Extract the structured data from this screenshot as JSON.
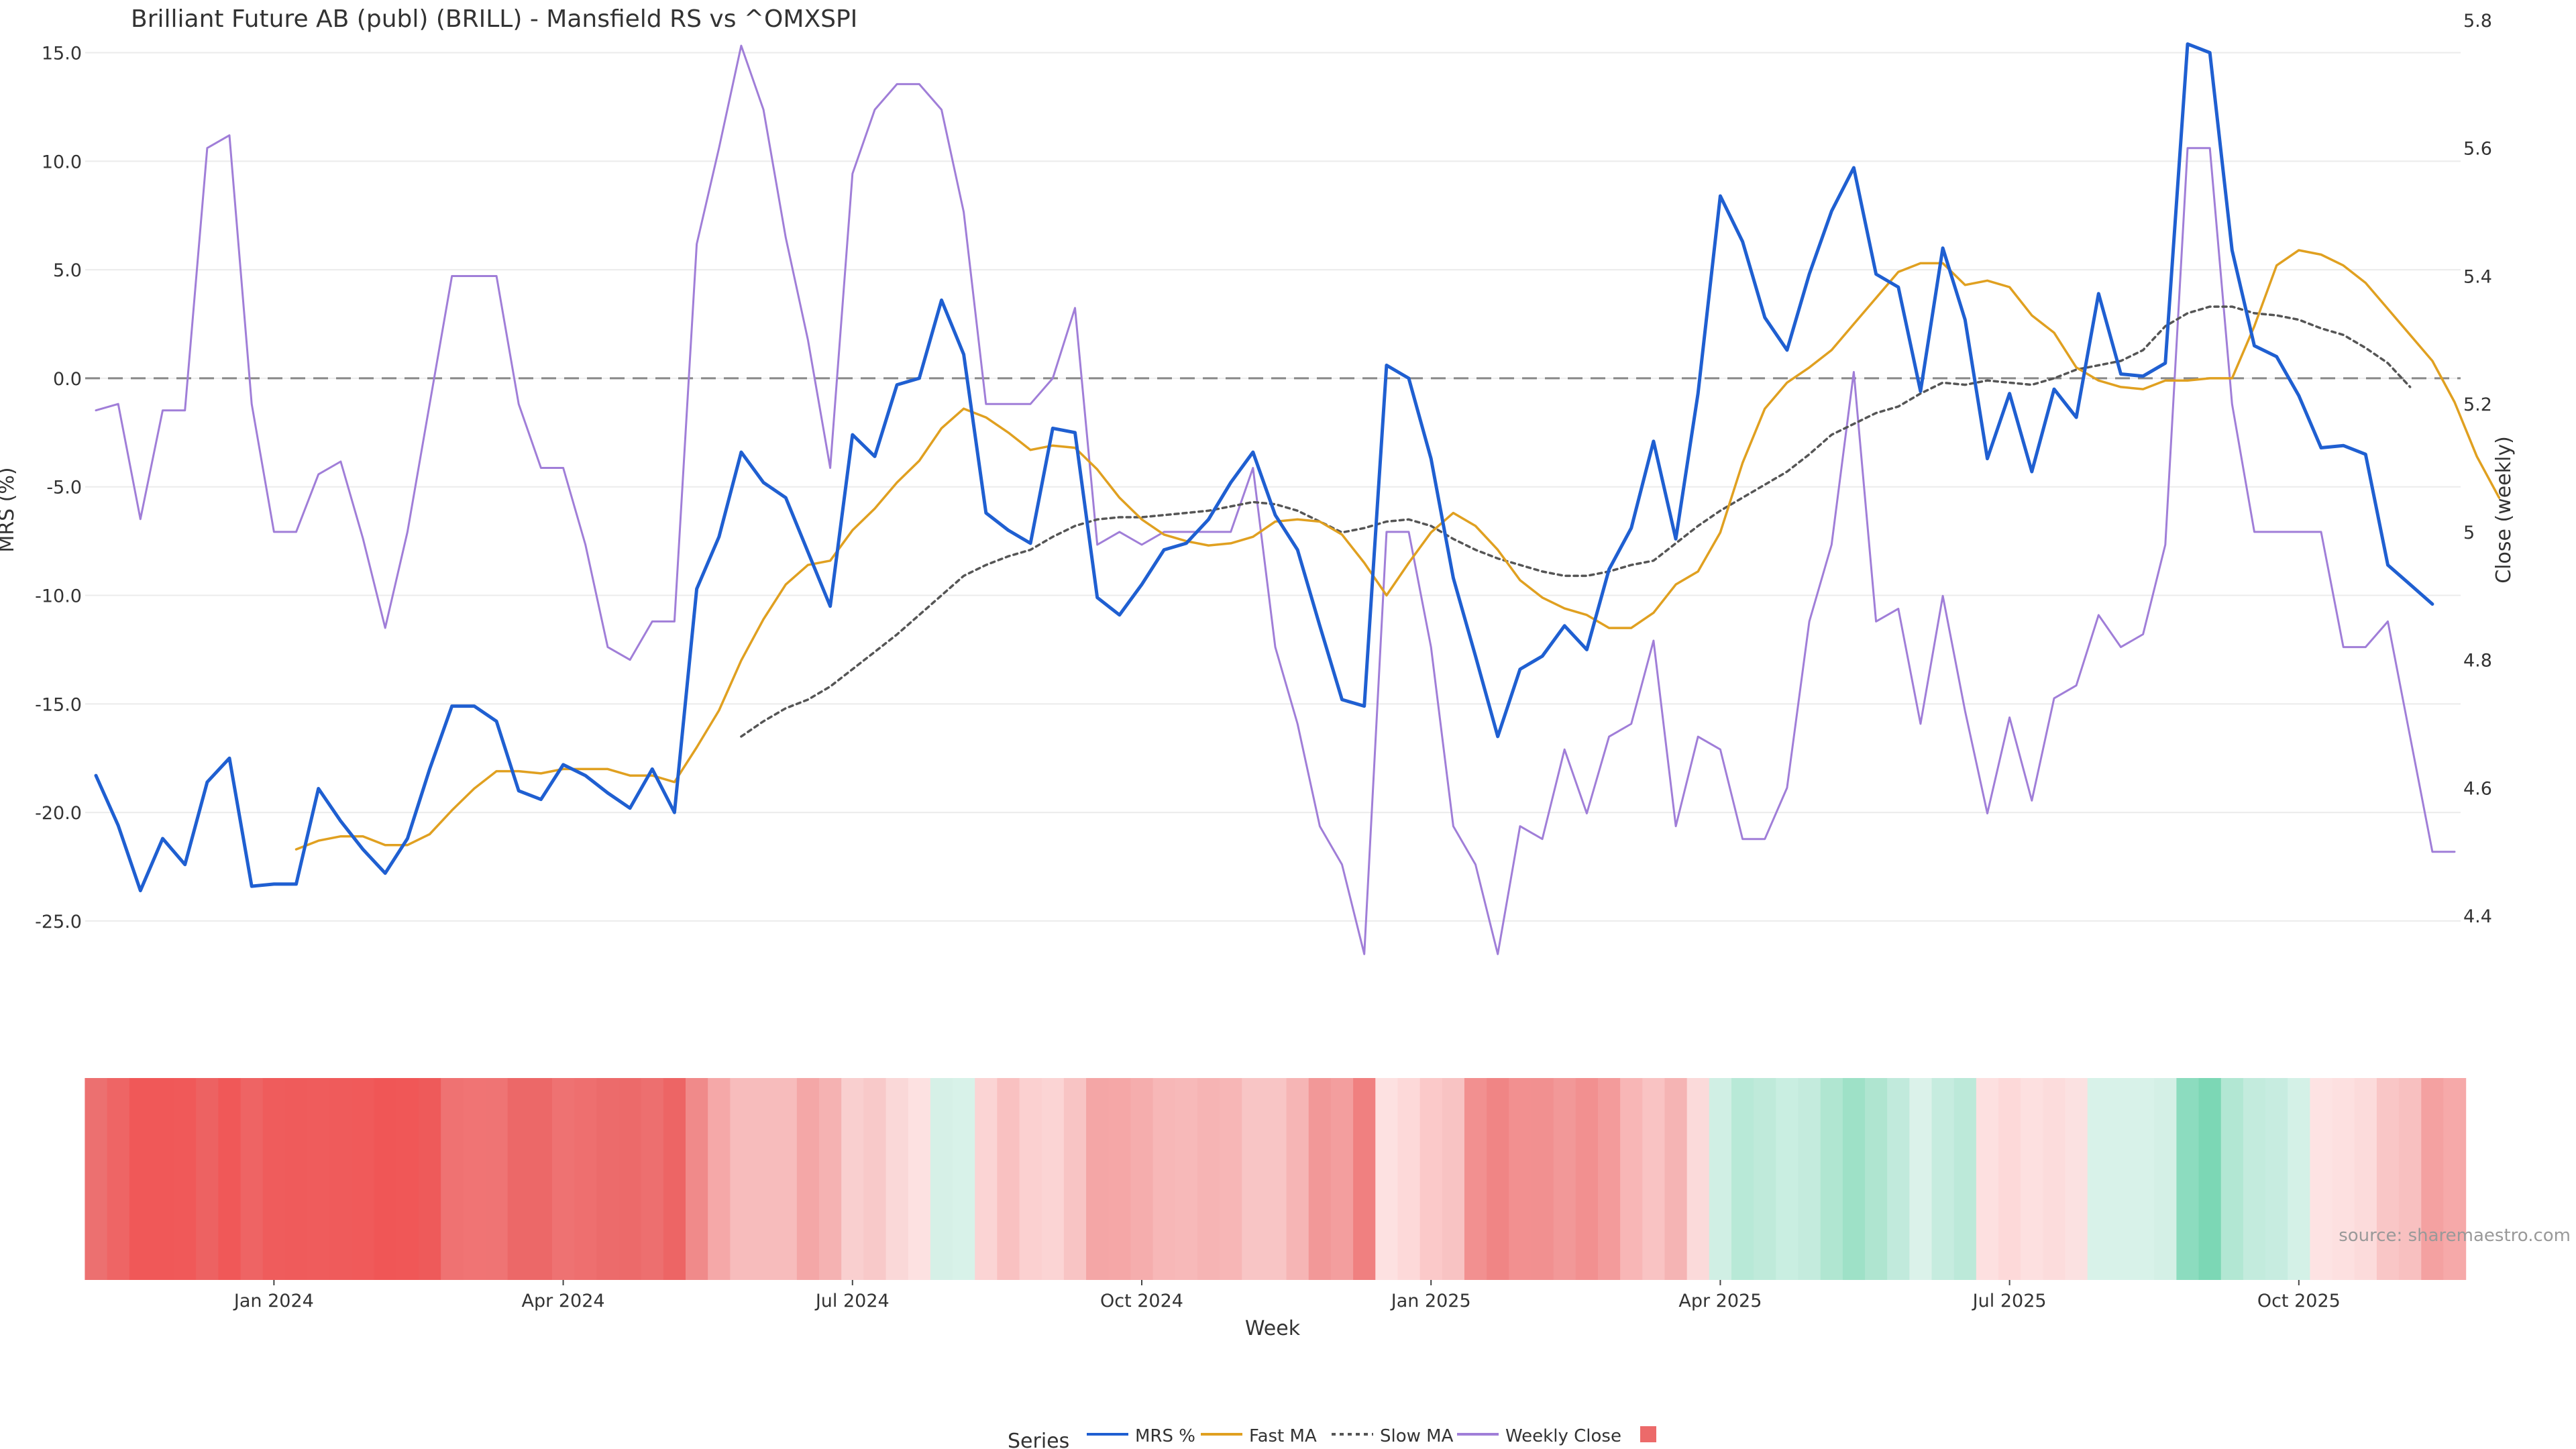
{
  "chart_data": {
    "type": "line",
    "title": "Brilliant Future AB (publ) (BRILL) - Mansfield RS vs ^OMXSPI",
    "xlabel": "Week",
    "ylabel_left": "MRS (%)",
    "ylabel_right": "Close (weekly)",
    "source": "source: sharemaestro.com",
    "left_axis": {
      "min": -28.0,
      "max": 16.5,
      "ticks": [
        15.0,
        10.0,
        5.0,
        0.0,
        -5.0,
        -10.0,
        -15.0,
        -20.0,
        -25.0
      ]
    },
    "right_axis": {
      "min": 4.29,
      "max": 5.8,
      "ticks": [
        "5.8",
        "5.6",
        "5.4",
        "5.2",
        "5",
        "4.8",
        "4.6",
        "4.4"
      ]
    },
    "x_ticks": [
      {
        "label": "Jan 2024",
        "week": 8
      },
      {
        "label": "Apr 2024",
        "week": 21
      },
      {
        "label": "Jul 2024",
        "week": 34
      },
      {
        "label": "Oct 2024",
        "week": 47
      },
      {
        "label": "Jan 2025",
        "week": 60
      },
      {
        "label": "Apr 2025",
        "week": 73
      },
      {
        "label": "Jul 2025",
        "week": 86
      },
      {
        "label": "Oct 2025",
        "week": 99
      }
    ],
    "week_count": 106,
    "series": [
      {
        "name": "MRS %",
        "color": "#1f5fd1",
        "axis": "left",
        "style": "solid",
        "start": 0,
        "values": [
          -18.3,
          -20.6,
          -23.6,
          -21.2,
          -22.4,
          -18.6,
          -17.5,
          -23.4,
          -23.3,
          -23.3,
          -18.9,
          -20.4,
          -21.7,
          -22.8,
          -21.2,
          -18.0,
          -15.1,
          -15.1,
          -15.8,
          -19.0,
          -19.4,
          -17.8,
          -18.3,
          -19.1,
          -19.8,
          -18.0,
          -20.0,
          -9.7,
          -7.3,
          -3.4,
          -4.8,
          -5.5,
          -8.0,
          -10.5,
          -2.6,
          -3.6,
          -0.3,
          0.0,
          3.6,
          1.1,
          -6.2,
          -7.0,
          -7.6,
          -2.3,
          -2.5,
          -10.1,
          -10.9,
          -9.5,
          -7.9,
          -7.6,
          -6.5,
          -4.8,
          -3.4,
          -6.3,
          -7.9,
          -11.4,
          -14.8,
          -15.1,
          0.6,
          0.0,
          -3.7,
          -9.2,
          -12.8,
          -16.5,
          -13.4,
          -12.8,
          -11.4,
          -12.5,
          -8.8,
          -6.9,
          -2.9,
          -7.4,
          -0.7,
          8.4,
          6.3,
          2.8,
          1.3,
          4.8,
          7.7,
          9.7,
          4.8,
          4.2,
          -0.6,
          6.0,
          2.7,
          -3.7,
          -0.7,
          -4.3,
          -0.5,
          -1.8,
          3.9,
          0.2,
          0.1,
          0.7,
          15.4,
          15.0,
          5.9,
          1.5,
          1.0,
          -0.8,
          -3.2,
          -3.1,
          -3.5,
          -8.6,
          -9.5,
          -10.4
        ]
      },
      {
        "name": "Fast MA",
        "color": "#e0a020",
        "axis": "left",
        "style": "solid",
        "start": 9,
        "values": [
          -21.7,
          -21.3,
          -21.1,
          -21.1,
          -21.5,
          -21.5,
          -21.0,
          -19.9,
          -18.9,
          -18.1,
          -18.1,
          -18.2,
          -18.0,
          -18.0,
          -18.0,
          -18.3,
          -18.3,
          -18.6,
          -17.0,
          -15.3,
          -13.0,
          -11.1,
          -9.5,
          -8.6,
          -8.4,
          -7.0,
          -6.0,
          -4.8,
          -3.8,
          -2.3,
          -1.4,
          -1.8,
          -2.5,
          -3.3,
          -3.1,
          -3.2,
          -4.2,
          -5.5,
          -6.5,
          -7.2,
          -7.5,
          -7.7,
          -7.6,
          -7.3,
          -6.6,
          -6.5,
          -6.6,
          -7.2,
          -8.5,
          -10.0,
          -8.5,
          -7.1,
          -6.2,
          -6.8,
          -7.9,
          -9.3,
          -10.1,
          -10.6,
          -10.9,
          -11.5,
          -11.5,
          -10.8,
          -9.5,
          -8.9,
          -7.1,
          -3.9,
          -1.4,
          -0.2,
          0.5,
          1.3,
          2.5,
          3.7,
          4.9,
          5.3,
          5.3,
          4.3,
          4.5,
          4.2,
          2.9,
          2.1,
          0.5,
          -0.1,
          -0.4,
          -0.5,
          -0.1,
          -0.1,
          0.0,
          0.0,
          2.4,
          5.2,
          5.9,
          5.7,
          5.2,
          4.4,
          3.2,
          2.0,
          0.8,
          -1.1,
          -3.6,
          -5.5
        ]
      },
      {
        "name": "Slow MA",
        "color": "#555555",
        "axis": "left",
        "style": "dotted",
        "start": 29,
        "values": [
          -16.5,
          -15.8,
          -15.2,
          -14.8,
          -14.2,
          -13.4,
          -12.6,
          -11.8,
          -10.9,
          -10.0,
          -9.1,
          -8.6,
          -8.2,
          -7.9,
          -7.3,
          -6.8,
          -6.5,
          -6.4,
          -6.4,
          -6.3,
          -6.2,
          -6.1,
          -5.9,
          -5.7,
          -5.8,
          -6.1,
          -6.6,
          -7.1,
          -6.9,
          -6.6,
          -6.5,
          -6.8,
          -7.4,
          -7.9,
          -8.3,
          -8.6,
          -8.9,
          -9.1,
          -9.1,
          -8.9,
          -8.6,
          -8.4,
          -7.6,
          -6.8,
          -6.1,
          -5.5,
          -4.9,
          -4.3,
          -3.5,
          -2.6,
          -2.1,
          -1.6,
          -1.3,
          -0.7,
          -0.2,
          -0.3,
          -0.1,
          -0.2,
          -0.3,
          0.0,
          0.4,
          0.6,
          0.8,
          1.3,
          2.4,
          3.0,
          3.3,
          3.3,
          3.0,
          2.9,
          2.7,
          2.3,
          2.0,
          1.4,
          0.7,
          -0.4
        ]
      },
      {
        "name": "Weekly Close",
        "color": "#a07ed8",
        "axis": "right",
        "style": "solid",
        "start": 0,
        "values": [
          5.19,
          5.2,
          5.02,
          5.19,
          5.19,
          5.6,
          5.62,
          5.2,
          5.0,
          5.0,
          5.09,
          5.11,
          4.99,
          4.85,
          5.0,
          5.2,
          5.4,
          5.4,
          5.4,
          5.2,
          5.1,
          5.1,
          4.98,
          4.82,
          4.8,
          4.86,
          4.86,
          5.45,
          5.6,
          5.76,
          5.66,
          5.46,
          5.3,
          5.1,
          5.56,
          5.66,
          5.7,
          5.7,
          5.66,
          5.5,
          5.2,
          5.2,
          5.2,
          5.24,
          5.35,
          4.98,
          5.0,
          4.98,
          5.0,
          5.0,
          5.0,
          5.0,
          5.1,
          4.82,
          4.7,
          4.54,
          4.48,
          4.34,
          5.0,
          5.0,
          4.82,
          4.54,
          4.48,
          4.34,
          4.54,
          4.52,
          4.66,
          4.56,
          4.68,
          4.7,
          4.83,
          4.54,
          4.68,
          4.66,
          4.52,
          4.52,
          4.6,
          4.86,
          4.98,
          5.25,
          4.86,
          4.88,
          4.7,
          4.9,
          4.72,
          4.56,
          4.71,
          4.58,
          4.74,
          4.76,
          4.87,
          4.82,
          4.84,
          4.98,
          5.6,
          5.6,
          5.2,
          5.0,
          5.0,
          5.0,
          5.0,
          4.82,
          4.82,
          4.86,
          4.68,
          4.5,
          4.5
        ]
      }
    ],
    "zero_line": 0,
    "heatmap_strip": {
      "description": "weekly MRS colour band",
      "start_week": -0.5,
      "colors": [
        "#ec7070",
        "#ee6565",
        "#f05858",
        "#f05858",
        "#f05959",
        "#ed6262",
        "#f05858",
        "#ee6464",
        "#ef5c5c",
        "#ef5b5b",
        "#ef5c5c",
        "#ef5b5b",
        "#f05a5a",
        "#f05656",
        "#f05757",
        "#ee5a5a",
        "#ef7272",
        "#f07474",
        "#ef7474",
        "#ec6868",
        "#ec6868",
        "#ee7272",
        "#ee6f6f",
        "#ec6b6b",
        "#ec6a6a",
        "#ed6f6f",
        "#ed6565",
        "#f08a8a",
        "#f5a8a8",
        "#f7bcbc",
        "#f7bcbc",
        "#f7bcbc",
        "#f4a7a7",
        "#f5b2b2",
        "#f9cfcf",
        "#f8c9c9",
        "#fad8d8",
        "#fde1e1",
        "#d6f0e7",
        "#d8f2e9",
        "#fbd4d4",
        "#f9c1c1",
        "#fbd0d0",
        "#fbd4d4",
        "#f8c4c4",
        "#f4a6a6",
        "#f5a7a7",
        "#f5adad",
        "#f7b7b7",
        "#f7b9b9",
        "#f6b4b4",
        "#f7b6b6",
        "#f8c5c5",
        "#f8c5c5",
        "#f6b5b5",
        "#f29898",
        "#f39e9e",
        "#f08080",
        "#fde1e1",
        "#fdd9d9",
        "#fbc9c9",
        "#f8c3c3",
        "#f29090",
        "#f08585",
        "#f29090",
        "#f19090",
        "#f29898",
        "#f29090",
        "#f39b9b",
        "#f8b6b6",
        "#f9c3c3",
        "#f5b4b4",
        "#fbdada",
        "#d0efe4",
        "#b8e9d7",
        "#bfeada",
        "#c9eee1",
        "#c4ebdd",
        "#b0e6d1",
        "#9ee1c7",
        "#afe5d0",
        "#c1eadc",
        "#dbf2ea",
        "#c6ecdf",
        "#bce9d9",
        "#fde0e0",
        "#fdd9d9",
        "#fde0e0",
        "#fcdcdc",
        "#fbe1e1",
        "#d8f2e9",
        "#d8f2e9",
        "#d8f2e9",
        "#d4f0e6",
        "#8cdcbf",
        "#7cd7b5",
        "#b2e7d3",
        "#c3ebdd",
        "#c7ece0",
        "#d4f1e7",
        "#fde3e3",
        "#fde0e0",
        "#fcdbdb",
        "#f9c6c6",
        "#f8c0c0",
        "#f4a1a1",
        "#f6a9a9"
      ]
    },
    "legend": {
      "title": "Series",
      "placement": "bottom-center",
      "items": [
        {
          "label": "MRS %",
          "color": "#1f5fd1",
          "style": "solid"
        },
        {
          "label": "Fast MA",
          "color": "#e0a020",
          "style": "solid"
        },
        {
          "label": "Slow MA",
          "color": "#555555",
          "style": "dotted"
        },
        {
          "label": "Weekly Close",
          "color": "#a07ed8",
          "style": "solid"
        },
        {
          "label": "",
          "color": "#ec6a6a",
          "style": "swatch"
        }
      ]
    }
  }
}
